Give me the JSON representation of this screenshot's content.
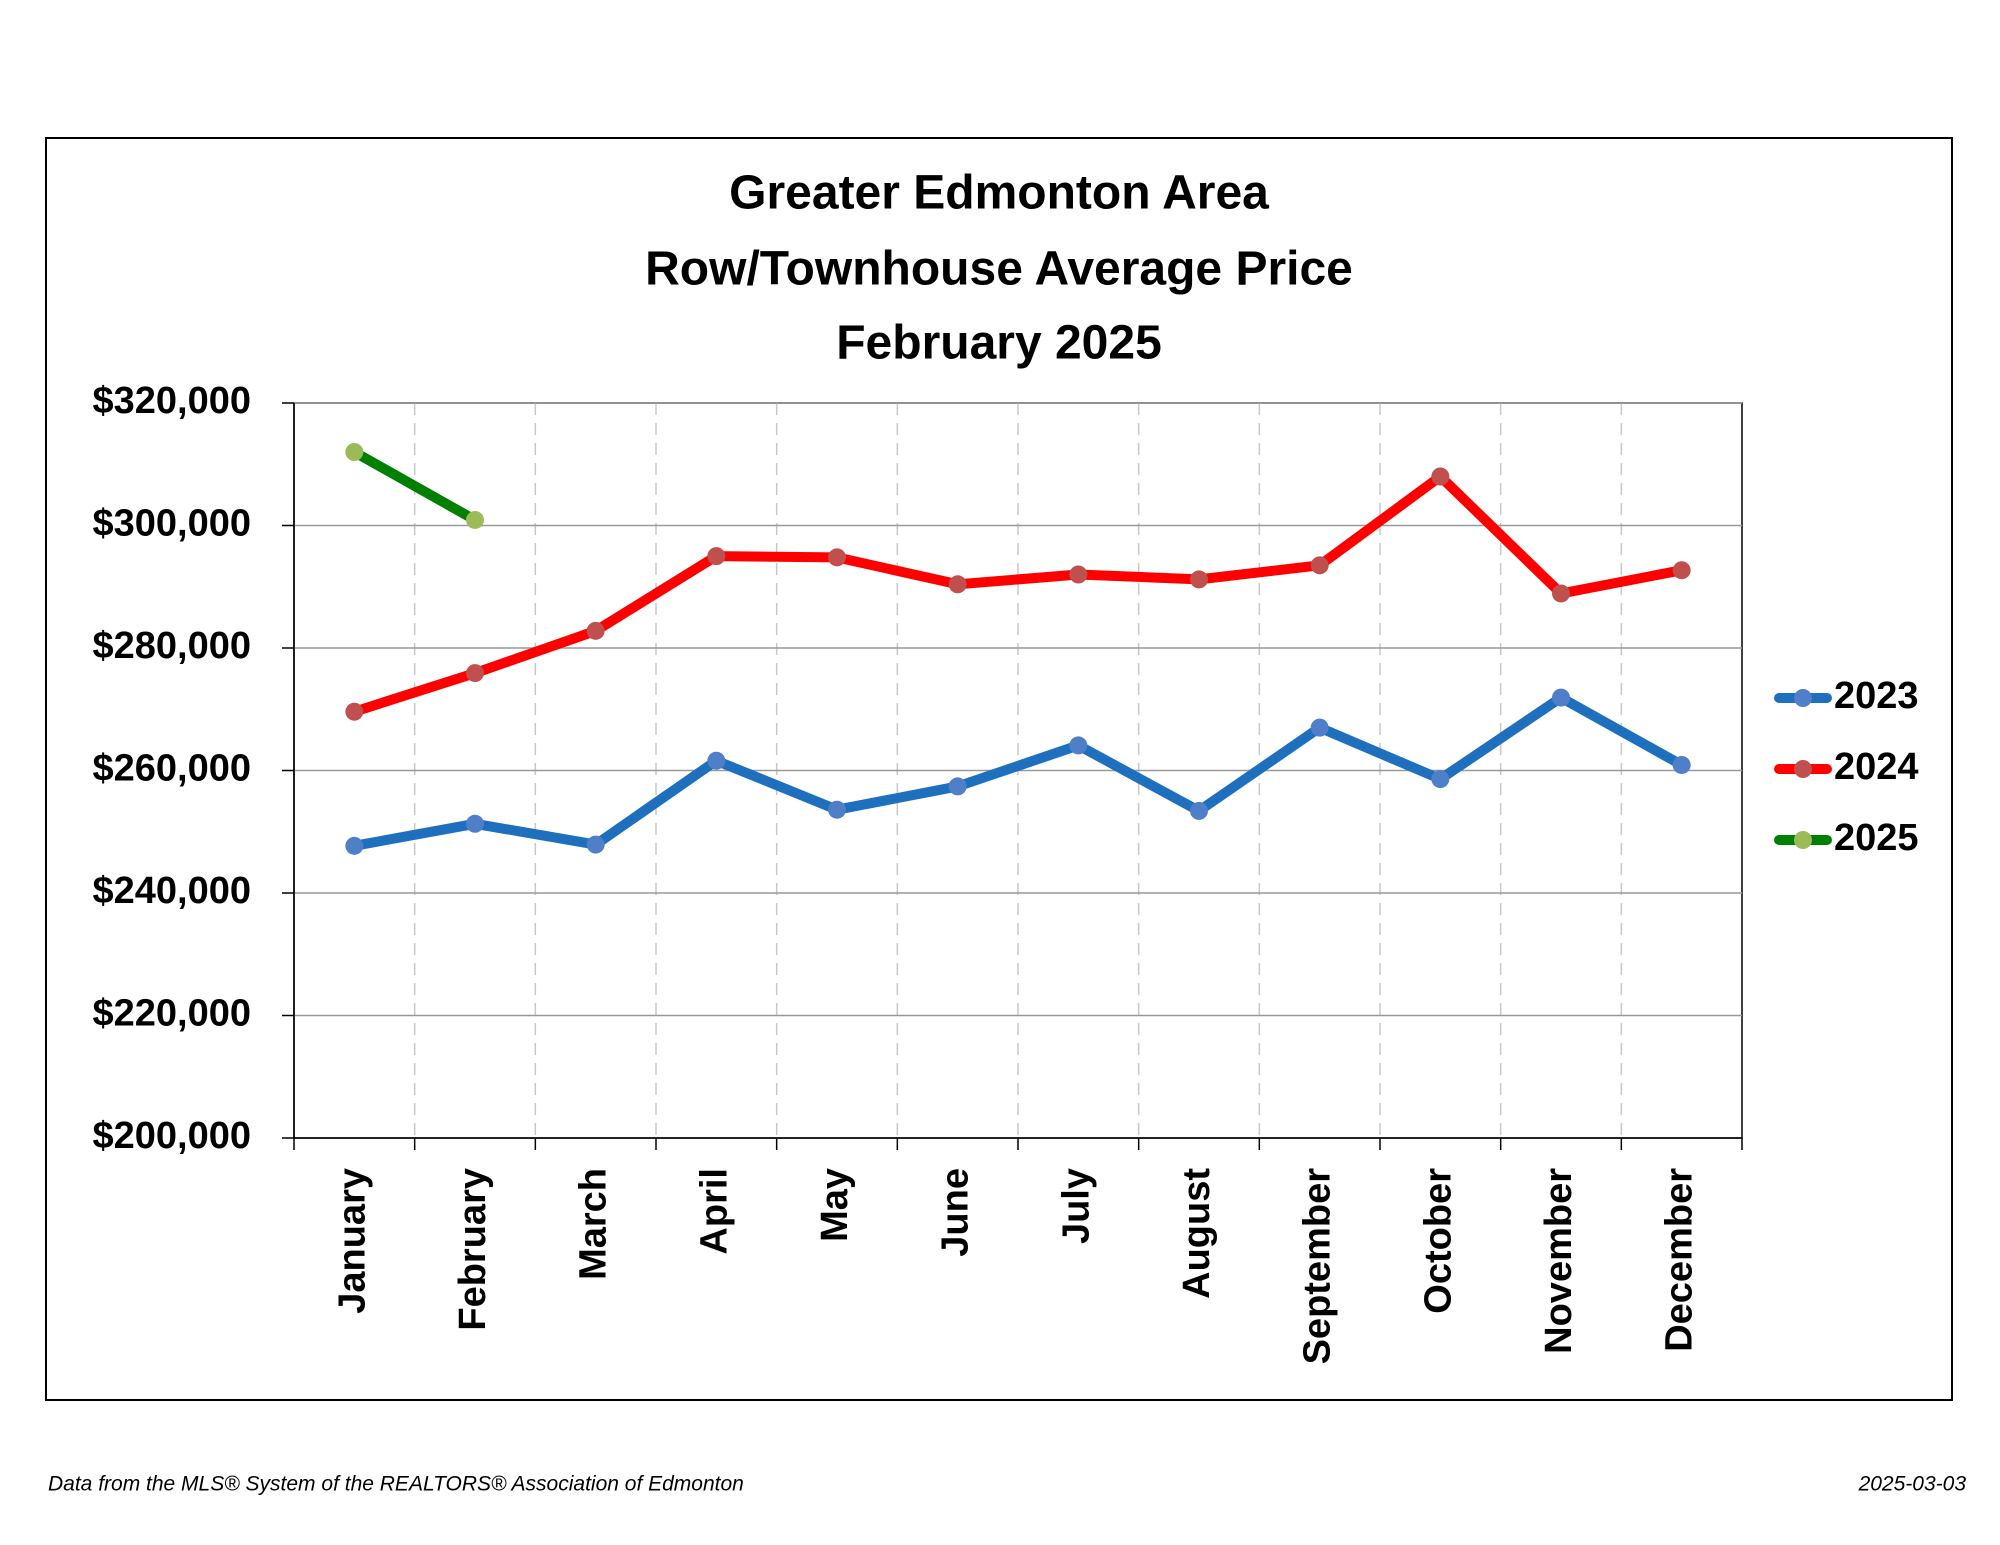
{
  "chart_data": {
    "type": "line",
    "title": [
      "Greater Edmonton Area",
      "Row/Townhouse Average Price",
      "February 2025"
    ],
    "categories": [
      "January",
      "February",
      "March",
      "April",
      "May",
      "June",
      "July",
      "August",
      "September",
      "October",
      "November",
      "December"
    ],
    "series": [
      {
        "name": "2023",
        "color": "#1f6fbf",
        "marker_color": "#4f7fc8",
        "values": [
          247700,
          251300,
          247900,
          261600,
          253600,
          257400,
          264100,
          253400,
          267000,
          258600,
          271900,
          260900
        ]
      },
      {
        "name": "2024",
        "color": "#ff0000",
        "marker_color": "#c0504d",
        "values": [
          269600,
          275900,
          282800,
          295000,
          294800,
          290400,
          292000,
          291200,
          293500,
          308000,
          288900,
          292700
        ]
      },
      {
        "name": "2025",
        "color": "#008000",
        "marker_color": "#9bbb59",
        "values": [
          312000,
          300900,
          null,
          null,
          null,
          null,
          null,
          null,
          null,
          null,
          null,
          null
        ]
      }
    ],
    "ylim": [
      200000,
      320000
    ],
    "yticks": [
      {
        "value": 200000,
        "label": "$200,000"
      },
      {
        "value": 220000,
        "label": "$220,000"
      },
      {
        "value": 240000,
        "label": "$240,000"
      },
      {
        "value": 260000,
        "label": "$260,000"
      },
      {
        "value": 280000,
        "label": "$280,000"
      },
      {
        "value": 300000,
        "label": "$300,000"
      },
      {
        "value": 320000,
        "label": "$320,000"
      }
    ],
    "grid": true,
    "legend": "right",
    "source": "Data from the MLS® System of the REALTORS® Association of Edmonton",
    "date": "2025-03-03"
  }
}
